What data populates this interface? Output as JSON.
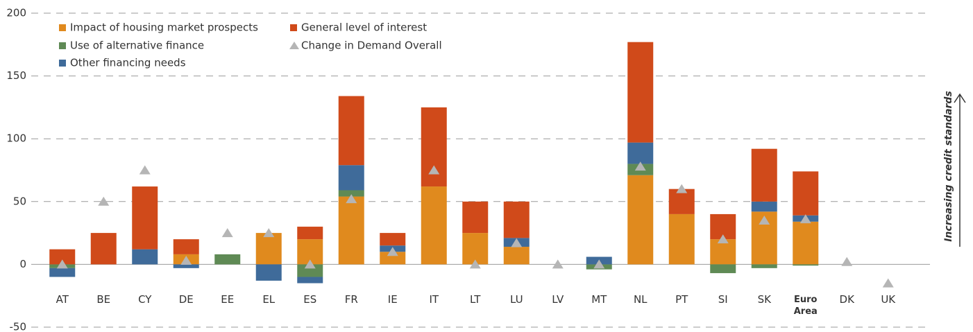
{
  "chart_data": {
    "type": "stacked-bar",
    "categories": [
      "AT",
      "BE",
      "CY",
      "DE",
      "EE",
      "EL",
      "ES",
      "FR",
      "IE",
      "IT",
      "LT",
      "LU",
      "LV",
      "MT",
      "NL",
      "PT",
      "SI",
      "SK",
      "Euro Area",
      "DK",
      "UK"
    ],
    "highlight_index": 18,
    "series": [
      {
        "name": "Impact of housing market prospects",
        "color": "#e08a1e",
        "values": [
          0,
          0,
          0,
          8,
          0,
          25,
          20,
          54,
          10,
          62,
          25,
          14,
          0,
          0,
          71,
          40,
          20,
          42,
          34,
          0,
          0
        ]
      },
      {
        "name": "Use of alternative finance",
        "color": "#5f8a55",
        "values": [
          -3,
          0,
          0,
          0,
          8,
          0,
          -10,
          5,
          0,
          0,
          0,
          0,
          0,
          -4,
          9,
          0,
          -7,
          -3,
          -1,
          0,
          0
        ]
      },
      {
        "name": "Other financing needs",
        "color": "#3f6b9a",
        "values": [
          -7,
          0,
          12,
          -3,
          0,
          -13,
          -5,
          20,
          5,
          0,
          0,
          7,
          0,
          6,
          17,
          0,
          0,
          8,
          5,
          0,
          0
        ]
      },
      {
        "name": "General level of interest",
        "color": "#d04a1a",
        "values": [
          12,
          25,
          50,
          12,
          0,
          0,
          10,
          55,
          10,
          63,
          25,
          29,
          0,
          0,
          80,
          20,
          20,
          42,
          35,
          0,
          0
        ]
      }
    ],
    "markers": {
      "name": "Change in Demand Overall",
      "color": "#b5b5b5",
      "values": [
        0,
        50,
        75,
        3,
        25,
        25,
        0,
        52,
        10,
        75,
        0,
        17,
        0,
        0,
        78,
        60,
        20,
        35,
        36,
        2,
        -15
      ]
    },
    "ylim": [
      -50,
      200
    ],
    "yticks": [
      -50,
      0,
      50,
      100,
      150,
      200
    ],
    "grid": true,
    "annotation": "Increasing credit standards"
  }
}
